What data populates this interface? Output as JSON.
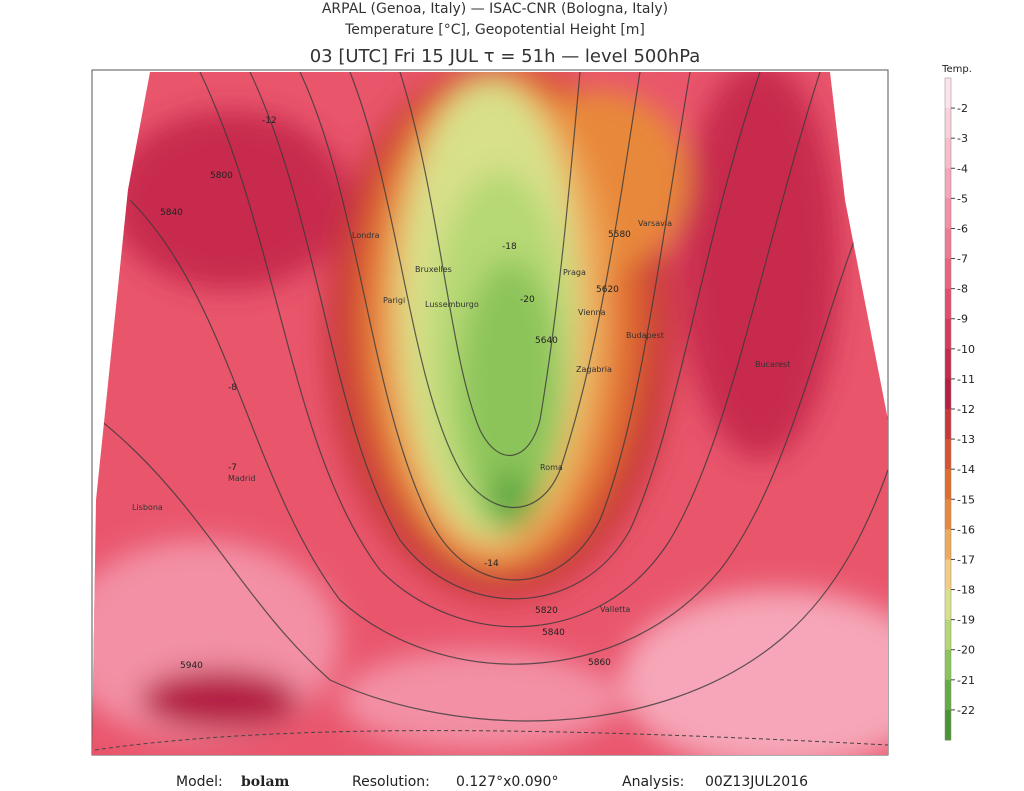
{
  "header": {
    "lines": [
      "ARPAL (Genoa, Italy)  —  ISAC-CNR (Bologna, Italy)",
      "Temperature [°C], Geopotential Height [m]",
      "03 [UTC] Fri 15 JUL  τ = 51h  —  level 500hPa"
    ]
  },
  "colorbar": {
    "title": "Temp.",
    "labels": [
      -2,
      -3,
      -4,
      -5,
      -6,
      -7,
      -8,
      -9,
      -10,
      -11,
      -12,
      -13,
      -14,
      -15,
      -16,
      -17,
      -18,
      -19,
      -20,
      -21,
      -22
    ],
    "colors": [
      "#fde4ec",
      "#fbd0da",
      "#f9bccb",
      "#f6a6b8",
      "#f390a5",
      "#ef7a92",
      "#ea6480",
      "#e34e6d",
      "#d83a5c",
      "#c82a4d",
      "#b41f42",
      "#c8383a",
      "#d65232",
      "#e06c2e",
      "#e8883a",
      "#eeaa5a",
      "#f2cc80",
      "#d8e08a",
      "#b6d874",
      "#8cc45a",
      "#66ac44",
      "#4a9434"
    ]
  },
  "map": {
    "labels": [
      "Londra",
      "Parigi",
      "Bruxelles",
      "Lussemburgo",
      "Madrid",
      "Lisbona",
      "Praga",
      "Vienna",
      "Budapest",
      "Varsavia",
      "Roma",
      "Zagabria",
      "Bucarest",
      "Valletta",
      "5820",
      "5840",
      "5860",
      "5840",
      "5580",
      "5620",
      "5640",
      "5800",
      "5940",
      "-18",
      "-20",
      "-14",
      "-7",
      "-8",
      "-12"
    ]
  },
  "footer": {
    "model_label": "Model:",
    "model": "bolam",
    "resolution_label": "Resolution:",
    "resolution": "0.127°x0.090°",
    "analysis_label": "Analysis:",
    "analysis": "00Z13JUL2016"
  }
}
